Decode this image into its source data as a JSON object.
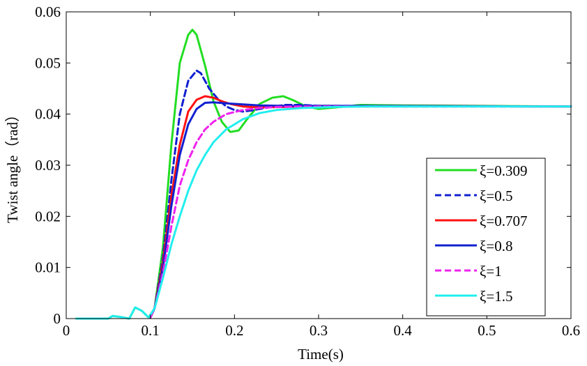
{
  "chart_data": {
    "type": "line",
    "xlabel": "Time(s)",
    "ylabel": "Twist angle（rad）",
    "xlim": [
      0,
      0.6
    ],
    "ylim": [
      0,
      0.06
    ],
    "xticks": [
      "0",
      "0.1",
      "0.2",
      "0.3",
      "0.4",
      "0.5",
      "0.6"
    ],
    "yticks": [
      "0",
      "0.01",
      "0.02",
      "0.03",
      "0.04",
      "0.05",
      "0.06"
    ],
    "grid": false,
    "legend_position": "bottom-right",
    "series": [
      {
        "name": "ξ=0.309",
        "color": "#22dd22",
        "dash": "solid",
        "x": [
          0.012,
          0.05,
          0.055,
          0.065,
          0.075,
          0.082,
          0.09,
          0.098,
          0.105,
          0.115,
          0.125,
          0.135,
          0.145,
          0.15,
          0.155,
          0.165,
          0.175,
          0.185,
          0.195,
          0.205,
          0.215,
          0.23,
          0.245,
          0.258,
          0.27,
          0.285,
          0.3,
          0.32,
          0.35,
          0.4,
          0.6
        ],
        "y": [
          0.0,
          0.0,
          0.0005,
          0.0003,
          0.0,
          0.0022,
          0.0015,
          0.0002,
          0.002,
          0.014,
          0.034,
          0.05,
          0.0555,
          0.0565,
          0.0555,
          0.0495,
          0.0425,
          0.0385,
          0.0365,
          0.0368,
          0.039,
          0.042,
          0.0432,
          0.0435,
          0.0427,
          0.0415,
          0.041,
          0.0413,
          0.0418,
          0.0417,
          0.0415
        ]
      },
      {
        "name": "ξ=0.5",
        "color": "#1020d0",
        "dash": "dashed",
        "x": [
          0.1,
          0.105,
          0.115,
          0.125,
          0.135,
          0.145,
          0.155,
          0.16,
          0.17,
          0.18,
          0.19,
          0.2,
          0.21,
          0.22,
          0.24,
          0.26,
          0.28,
          0.3,
          0.35,
          0.6
        ],
        "y": [
          0.0002,
          0.002,
          0.012,
          0.027,
          0.04,
          0.0465,
          0.0485,
          0.048,
          0.045,
          0.043,
          0.0415,
          0.0408,
          0.0405,
          0.0407,
          0.0413,
          0.0418,
          0.0418,
          0.0416,
          0.0416,
          0.0415
        ]
      },
      {
        "name": "ξ=0.707",
        "color": "#ff1010",
        "dash": "solid",
        "x": [
          0.1,
          0.105,
          0.115,
          0.125,
          0.135,
          0.145,
          0.155,
          0.165,
          0.175,
          0.185,
          0.195,
          0.21,
          0.23,
          0.26,
          0.3,
          0.6
        ],
        "y": [
          0.0002,
          0.002,
          0.011,
          0.024,
          0.034,
          0.0405,
          0.0428,
          0.0435,
          0.0432,
          0.0425,
          0.042,
          0.0415,
          0.0413,
          0.0414,
          0.0416,
          0.0415
        ]
      },
      {
        "name": "ξ=0.8",
        "color": "#1020d0",
        "dash": "solid",
        "x": [
          0.1,
          0.105,
          0.115,
          0.125,
          0.135,
          0.145,
          0.155,
          0.165,
          0.175,
          0.19,
          0.21,
          0.23,
          0.26,
          0.3,
          0.6
        ],
        "y": [
          0.0002,
          0.002,
          0.01,
          0.022,
          0.032,
          0.038,
          0.041,
          0.0422,
          0.0423,
          0.0421,
          0.0419,
          0.0417,
          0.0416,
          0.0416,
          0.0415
        ]
      },
      {
        "name": "ξ=1",
        "color": "#ee22ee",
        "dash": "dashed",
        "x": [
          0.1,
          0.105,
          0.115,
          0.125,
          0.135,
          0.145,
          0.155,
          0.165,
          0.175,
          0.19,
          0.21,
          0.23,
          0.25,
          0.28,
          0.32,
          0.6
        ],
        "y": [
          0.0002,
          0.002,
          0.009,
          0.018,
          0.026,
          0.031,
          0.0345,
          0.037,
          0.0385,
          0.04,
          0.0408,
          0.0412,
          0.0414,
          0.0415,
          0.0415,
          0.0415
        ]
      },
      {
        "name": "ξ=1.5",
        "color": "#22eeee",
        "dash": "solid",
        "x": [
          0.012,
          0.05,
          0.055,
          0.065,
          0.075,
          0.082,
          0.09,
          0.098,
          0.105,
          0.115,
          0.125,
          0.135,
          0.145,
          0.155,
          0.165,
          0.175,
          0.19,
          0.21,
          0.23,
          0.25,
          0.28,
          0.32,
          0.36,
          0.6
        ],
        "y": [
          0.0,
          0.0,
          0.0005,
          0.0003,
          0.0,
          0.0022,
          0.0015,
          0.0002,
          0.002,
          0.008,
          0.0145,
          0.02,
          0.025,
          0.029,
          0.032,
          0.0345,
          0.037,
          0.039,
          0.0402,
          0.0408,
          0.0412,
          0.0414,
          0.0415,
          0.0415
        ]
      }
    ]
  }
}
